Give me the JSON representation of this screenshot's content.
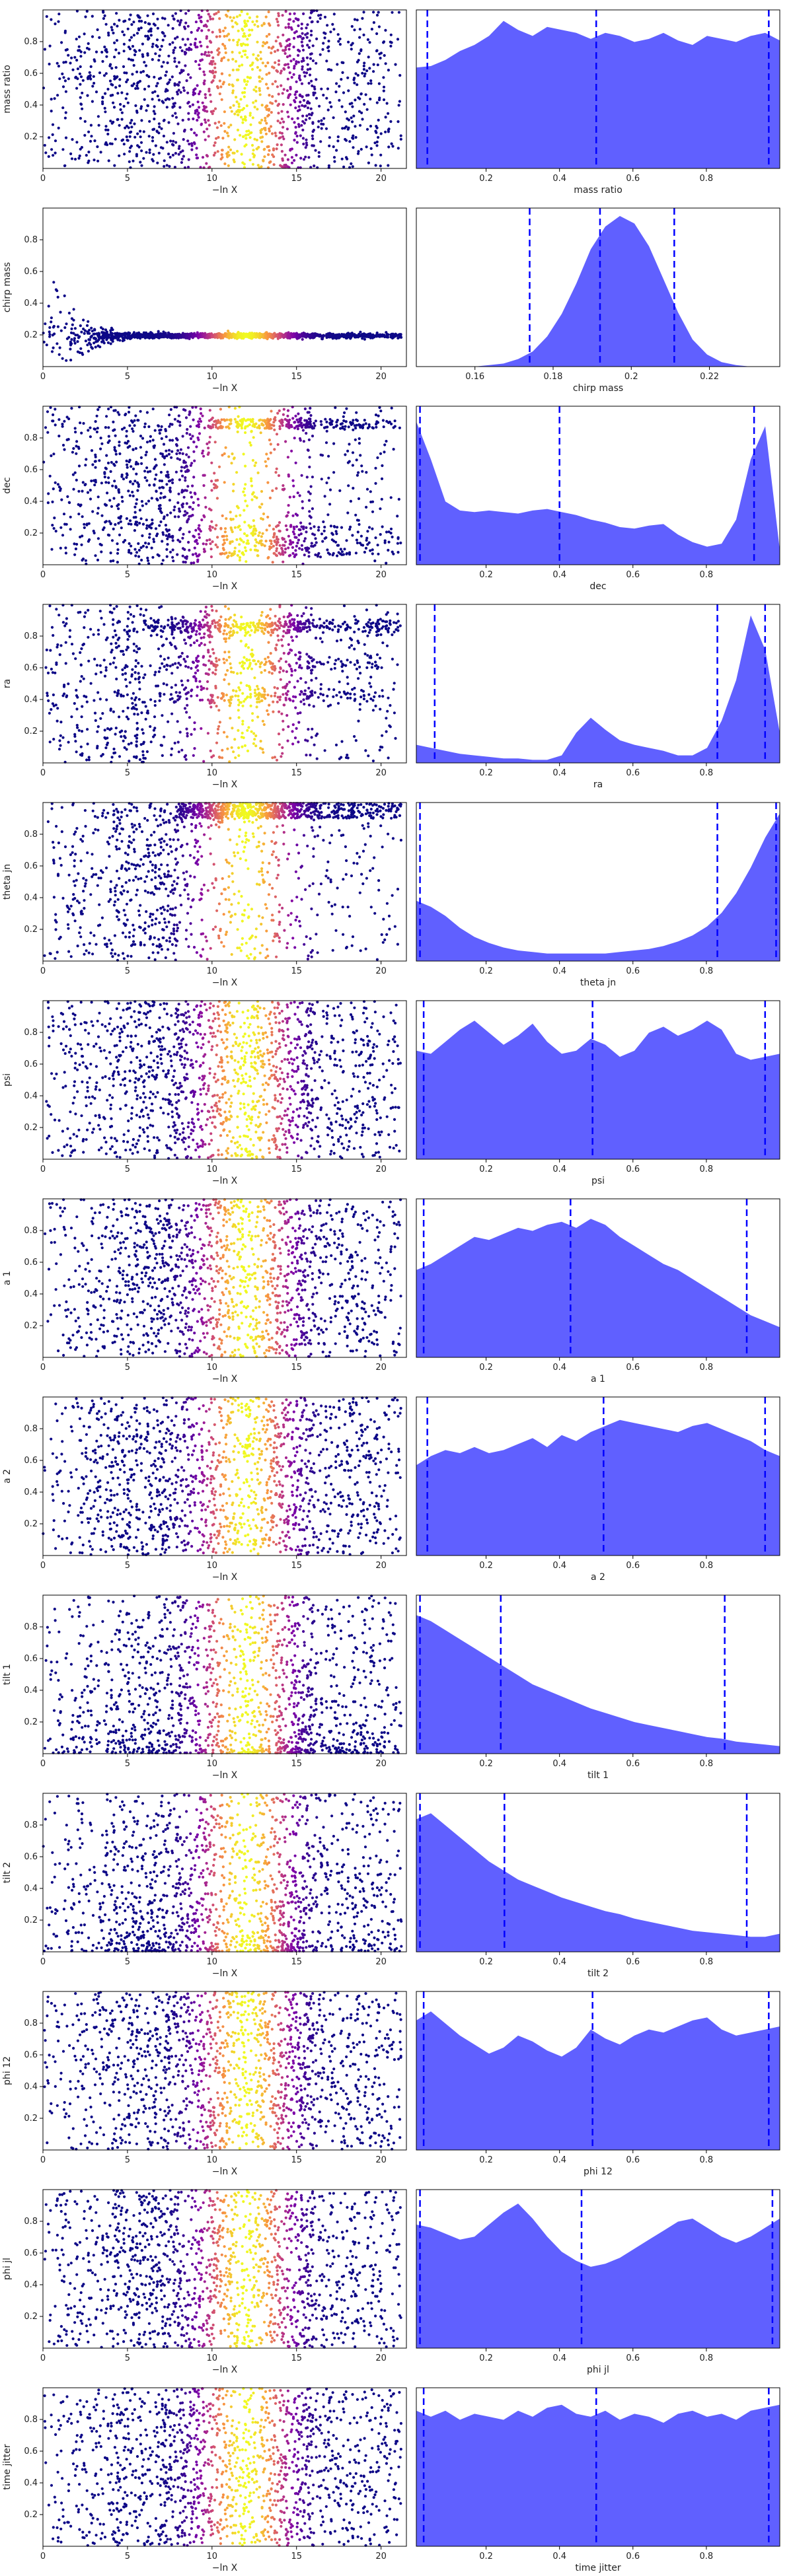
{
  "chart_data": {
    "type": "scatter",
    "layout_desc": "13 rows; left: -lnX scatter colored by weight; right: marginal density with dashed quantile lines",
    "colormap": "plasma",
    "kde_color": "#6060ff",
    "quantile_color": "#0000ff",
    "x_label_left": "−ln X",
    "rows": [
      {
        "param": "mass ratio",
        "shape": "flat",
        "left": {
          "xlim": [
            0,
            21.5
          ],
          "ylim": [
            0,
            1
          ],
          "xticks": [
            0,
            5,
            10,
            15,
            20
          ],
          "yticks": [
            0.2,
            0.4,
            0.6,
            0.8
          ]
        },
        "right": {
          "xlim": [
            0.01,
            1.0
          ],
          "xticks": [
            0.2,
            0.4,
            0.6,
            0.8
          ],
          "quantiles": [
            0.04,
            0.5,
            0.97
          ],
          "density": [
            0.67,
            0.68,
            0.72,
            0.78,
            0.82,
            0.88,
            0.98,
            0.92,
            0.88,
            0.94,
            0.92,
            0.9,
            0.86,
            0.9,
            0.88,
            0.84,
            0.86,
            0.9,
            0.85,
            0.82,
            0.88,
            0.86,
            0.84,
            0.88,
            0.9,
            0.85
          ]
        }
      },
      {
        "param": "chirp mass",
        "shape": "funnel",
        "left": {
          "xlim": [
            0,
            21.5
          ],
          "ylim": [
            0,
            1
          ],
          "xticks": [
            0,
            5,
            10,
            15,
            20
          ],
          "yticks": [
            0.2,
            0.4,
            0.6,
            0.8
          ]
        },
        "right": {
          "xlim": [
            0.145,
            0.238
          ],
          "xticks": [
            0.16,
            0.18,
            0.2,
            0.22
          ],
          "quantiles": [
            0.174,
            0.192,
            0.211
          ],
          "density": [
            0,
            0,
            0,
            0,
            0,
            0.01,
            0.02,
            0.05,
            0.1,
            0.2,
            0.35,
            0.55,
            0.78,
            0.93,
            1.0,
            0.95,
            0.8,
            0.58,
            0.36,
            0.18,
            0.08,
            0.03,
            0.01,
            0,
            0,
            0
          ]
        }
      },
      {
        "param": "dec",
        "shape": "band_bottom_top",
        "left": {
          "xlim": [
            0,
            21.5
          ],
          "ylim": [
            0,
            1
          ],
          "xticks": [
            0,
            5,
            10,
            15,
            20
          ],
          "yticks": [
            0.2,
            0.4,
            0.6,
            0.8
          ]
        },
        "right": {
          "xlim": [
            0.01,
            1.0
          ],
          "xticks": [
            0.2,
            0.4,
            0.6,
            0.8
          ],
          "quantiles": [
            0.02,
            0.4,
            0.93
          ],
          "density": [
            0.95,
            0.7,
            0.42,
            0.36,
            0.35,
            0.36,
            0.35,
            0.34,
            0.36,
            0.37,
            0.35,
            0.33,
            0.3,
            0.28,
            0.25,
            0.24,
            0.26,
            0.27,
            0.2,
            0.15,
            0.12,
            0.14,
            0.3,
            0.7,
            0.92,
            0.1
          ]
        }
      },
      {
        "param": "ra",
        "shape": "bands_ra",
        "left": {
          "xlim": [
            0,
            21.5
          ],
          "ylim": [
            0,
            1
          ],
          "xticks": [
            0,
            5,
            10,
            15,
            20
          ],
          "yticks": [
            0.2,
            0.4,
            0.6,
            0.8
          ]
        },
        "right": {
          "xlim": [
            0.01,
            1.0
          ],
          "xticks": [
            0.2,
            0.4,
            0.6,
            0.8
          ],
          "quantiles": [
            0.06,
            0.83,
            0.96
          ],
          "density": [
            0.12,
            0.1,
            0.08,
            0.06,
            0.05,
            0.04,
            0.03,
            0.03,
            0.02,
            0.02,
            0.05,
            0.2,
            0.3,
            0.22,
            0.15,
            0.12,
            0.1,
            0.08,
            0.05,
            0.05,
            0.1,
            0.28,
            0.55,
            0.98,
            0.75,
            0.2
          ]
        }
      },
      {
        "param": "theta jn",
        "shape": "u_shape",
        "left": {
          "xlim": [
            0,
            21.5
          ],
          "ylim": [
            0,
            1
          ],
          "xticks": [
            0,
            5,
            10,
            15,
            20
          ],
          "yticks": [
            0.2,
            0.4,
            0.6,
            0.8
          ]
        },
        "right": {
          "xlim": [
            0.01,
            1.0
          ],
          "xticks": [
            0.2,
            0.4,
            0.6,
            0.8
          ],
          "quantiles": [
            0.02,
            0.83,
            0.99
          ],
          "density": [
            0.4,
            0.36,
            0.3,
            0.22,
            0.16,
            0.12,
            0.09,
            0.07,
            0.06,
            0.05,
            0.05,
            0.05,
            0.05,
            0.05,
            0.06,
            0.07,
            0.08,
            0.1,
            0.13,
            0.17,
            0.23,
            0.32,
            0.45,
            0.62,
            0.82,
            0.98
          ]
        }
      },
      {
        "param": "psi",
        "shape": "flat",
        "left": {
          "xlim": [
            0,
            21.5
          ],
          "ylim": [
            0,
            1
          ],
          "xticks": [
            0,
            5,
            10,
            15,
            20
          ],
          "yticks": [
            0.2,
            0.4,
            0.6,
            0.8
          ]
        },
        "right": {
          "xlim": [
            0.01,
            1.0
          ],
          "xticks": [
            0.2,
            0.4,
            0.6,
            0.8
          ],
          "quantiles": [
            0.03,
            0.49,
            0.96
          ],
          "density": [
            0.72,
            0.7,
            0.78,
            0.86,
            0.92,
            0.84,
            0.76,
            0.82,
            0.9,
            0.78,
            0.7,
            0.72,
            0.8,
            0.76,
            0.68,
            0.72,
            0.84,
            0.88,
            0.82,
            0.86,
            0.92,
            0.86,
            0.7,
            0.66,
            0.68,
            0.7
          ]
        }
      },
      {
        "param": "a 1",
        "shape": "flat",
        "left": {
          "xlim": [
            0,
            21.5
          ],
          "ylim": [
            0,
            1
          ],
          "xticks": [
            0,
            5,
            10,
            15,
            20
          ],
          "yticks": [
            0.2,
            0.4,
            0.6,
            0.8
          ]
        },
        "right": {
          "xlim": [
            0.01,
            1.0
          ],
          "xticks": [
            0.2,
            0.4,
            0.6,
            0.8
          ],
          "quantiles": [
            0.03,
            0.43,
            0.91
          ],
          "density": [
            0.58,
            0.62,
            0.68,
            0.74,
            0.8,
            0.78,
            0.82,
            0.86,
            0.84,
            0.88,
            0.9,
            0.86,
            0.92,
            0.88,
            0.8,
            0.74,
            0.68,
            0.62,
            0.58,
            0.52,
            0.46,
            0.4,
            0.34,
            0.28,
            0.24,
            0.2
          ]
        }
      },
      {
        "param": "a 2",
        "shape": "flat",
        "left": {
          "xlim": [
            0,
            21.5
          ],
          "ylim": [
            0,
            1
          ],
          "xticks": [
            0,
            5,
            10,
            15,
            20
          ],
          "yticks": [
            0.2,
            0.4,
            0.6,
            0.8
          ]
        },
        "right": {
          "xlim": [
            0.01,
            1.0
          ],
          "xticks": [
            0.2,
            0.4,
            0.6,
            0.8
          ],
          "quantiles": [
            0.04,
            0.52,
            0.96
          ],
          "density": [
            0.6,
            0.66,
            0.7,
            0.68,
            0.72,
            0.68,
            0.7,
            0.74,
            0.78,
            0.72,
            0.8,
            0.76,
            0.82,
            0.86,
            0.9,
            0.88,
            0.86,
            0.84,
            0.82,
            0.86,
            0.88,
            0.84,
            0.8,
            0.76,
            0.7,
            0.66
          ]
        }
      },
      {
        "param": "tilt 1",
        "shape": "decreasing",
        "left": {
          "xlim": [
            0,
            21.5
          ],
          "ylim": [
            0,
            1
          ],
          "xticks": [
            0,
            5,
            10,
            15,
            20
          ],
          "yticks": [
            0.2,
            0.4,
            0.6,
            0.8
          ]
        },
        "right": {
          "xlim": [
            0.01,
            1.0
          ],
          "xticks": [
            0.2,
            0.4,
            0.6,
            0.8
          ],
          "quantiles": [
            0.02,
            0.24,
            0.85
          ],
          "density": [
            0.92,
            0.88,
            0.82,
            0.76,
            0.7,
            0.64,
            0.58,
            0.52,
            0.46,
            0.42,
            0.38,
            0.34,
            0.3,
            0.27,
            0.24,
            0.21,
            0.19,
            0.17,
            0.15,
            0.13,
            0.11,
            0.1,
            0.08,
            0.07,
            0.06,
            0.05
          ]
        }
      },
      {
        "param": "tilt 2",
        "shape": "decreasing",
        "left": {
          "xlim": [
            0,
            21.5
          ],
          "ylim": [
            0,
            1
          ],
          "xticks": [
            0,
            5,
            10,
            15,
            20
          ],
          "yticks": [
            0.2,
            0.4,
            0.6,
            0.8
          ]
        },
        "right": {
          "xlim": [
            0.01,
            1.0
          ],
          "xticks": [
            0.2,
            0.4,
            0.6,
            0.8
          ],
          "quantiles": [
            0.02,
            0.25,
            0.91
          ],
          "density": [
            0.88,
            0.92,
            0.84,
            0.76,
            0.68,
            0.6,
            0.54,
            0.48,
            0.44,
            0.4,
            0.36,
            0.33,
            0.3,
            0.27,
            0.25,
            0.22,
            0.2,
            0.18,
            0.16,
            0.14,
            0.13,
            0.12,
            0.11,
            0.1,
            0.1,
            0.12
          ]
        }
      },
      {
        "param": "phi 12",
        "shape": "flat",
        "left": {
          "xlim": [
            0,
            21.5
          ],
          "ylim": [
            0,
            1
          ],
          "xticks": [
            0,
            5,
            10,
            15,
            20
          ],
          "yticks": [
            0.2,
            0.4,
            0.6,
            0.8
          ]
        },
        "right": {
          "xlim": [
            0.01,
            1.0
          ],
          "xticks": [
            0.2,
            0.4,
            0.6,
            0.8
          ],
          "quantiles": [
            0.03,
            0.49,
            0.97
          ],
          "density": [
            0.86,
            0.92,
            0.84,
            0.76,
            0.7,
            0.64,
            0.68,
            0.76,
            0.72,
            0.66,
            0.62,
            0.68,
            0.8,
            0.74,
            0.7,
            0.76,
            0.8,
            0.78,
            0.82,
            0.86,
            0.88,
            0.8,
            0.76,
            0.78,
            0.8,
            0.82
          ]
        }
      },
      {
        "param": "phi jl",
        "shape": "flat",
        "left": {
          "xlim": [
            0,
            21.5
          ],
          "ylim": [
            0,
            1
          ],
          "xticks": [
            0,
            5,
            10,
            15,
            20
          ],
          "yticks": [
            0.2,
            0.4,
            0.6,
            0.8
          ]
        },
        "right": {
          "xlim": [
            0.01,
            1.0
          ],
          "xticks": [
            0.2,
            0.4,
            0.6,
            0.8
          ],
          "quantiles": [
            0.02,
            0.46,
            0.98
          ],
          "density": [
            0.82,
            0.8,
            0.76,
            0.72,
            0.74,
            0.82,
            0.9,
            0.96,
            0.86,
            0.74,
            0.64,
            0.58,
            0.54,
            0.56,
            0.6,
            0.66,
            0.72,
            0.78,
            0.84,
            0.86,
            0.8,
            0.74,
            0.7,
            0.74,
            0.8,
            0.86
          ]
        }
      },
      {
        "param": "time jitter",
        "shape": "flat",
        "left": {
          "xlim": [
            0,
            21.5
          ],
          "ylim": [
            0,
            1
          ],
          "xticks": [
            0,
            5,
            10,
            15,
            20
          ],
          "yticks": [
            0.2,
            0.4,
            0.6,
            0.8
          ]
        },
        "right": {
          "xlim": [
            0.01,
            1.0
          ],
          "xticks": [
            0.2,
            0.4,
            0.6,
            0.8
          ],
          "quantiles": [
            0.03,
            0.5,
            0.97
          ],
          "density": [
            0.9,
            0.86,
            0.9,
            0.84,
            0.88,
            0.86,
            0.84,
            0.9,
            0.86,
            0.92,
            0.94,
            0.88,
            0.86,
            0.9,
            0.84,
            0.88,
            0.86,
            0.82,
            0.88,
            0.9,
            0.86,
            0.88,
            0.84,
            0.9,
            0.92,
            0.94
          ]
        }
      }
    ]
  }
}
